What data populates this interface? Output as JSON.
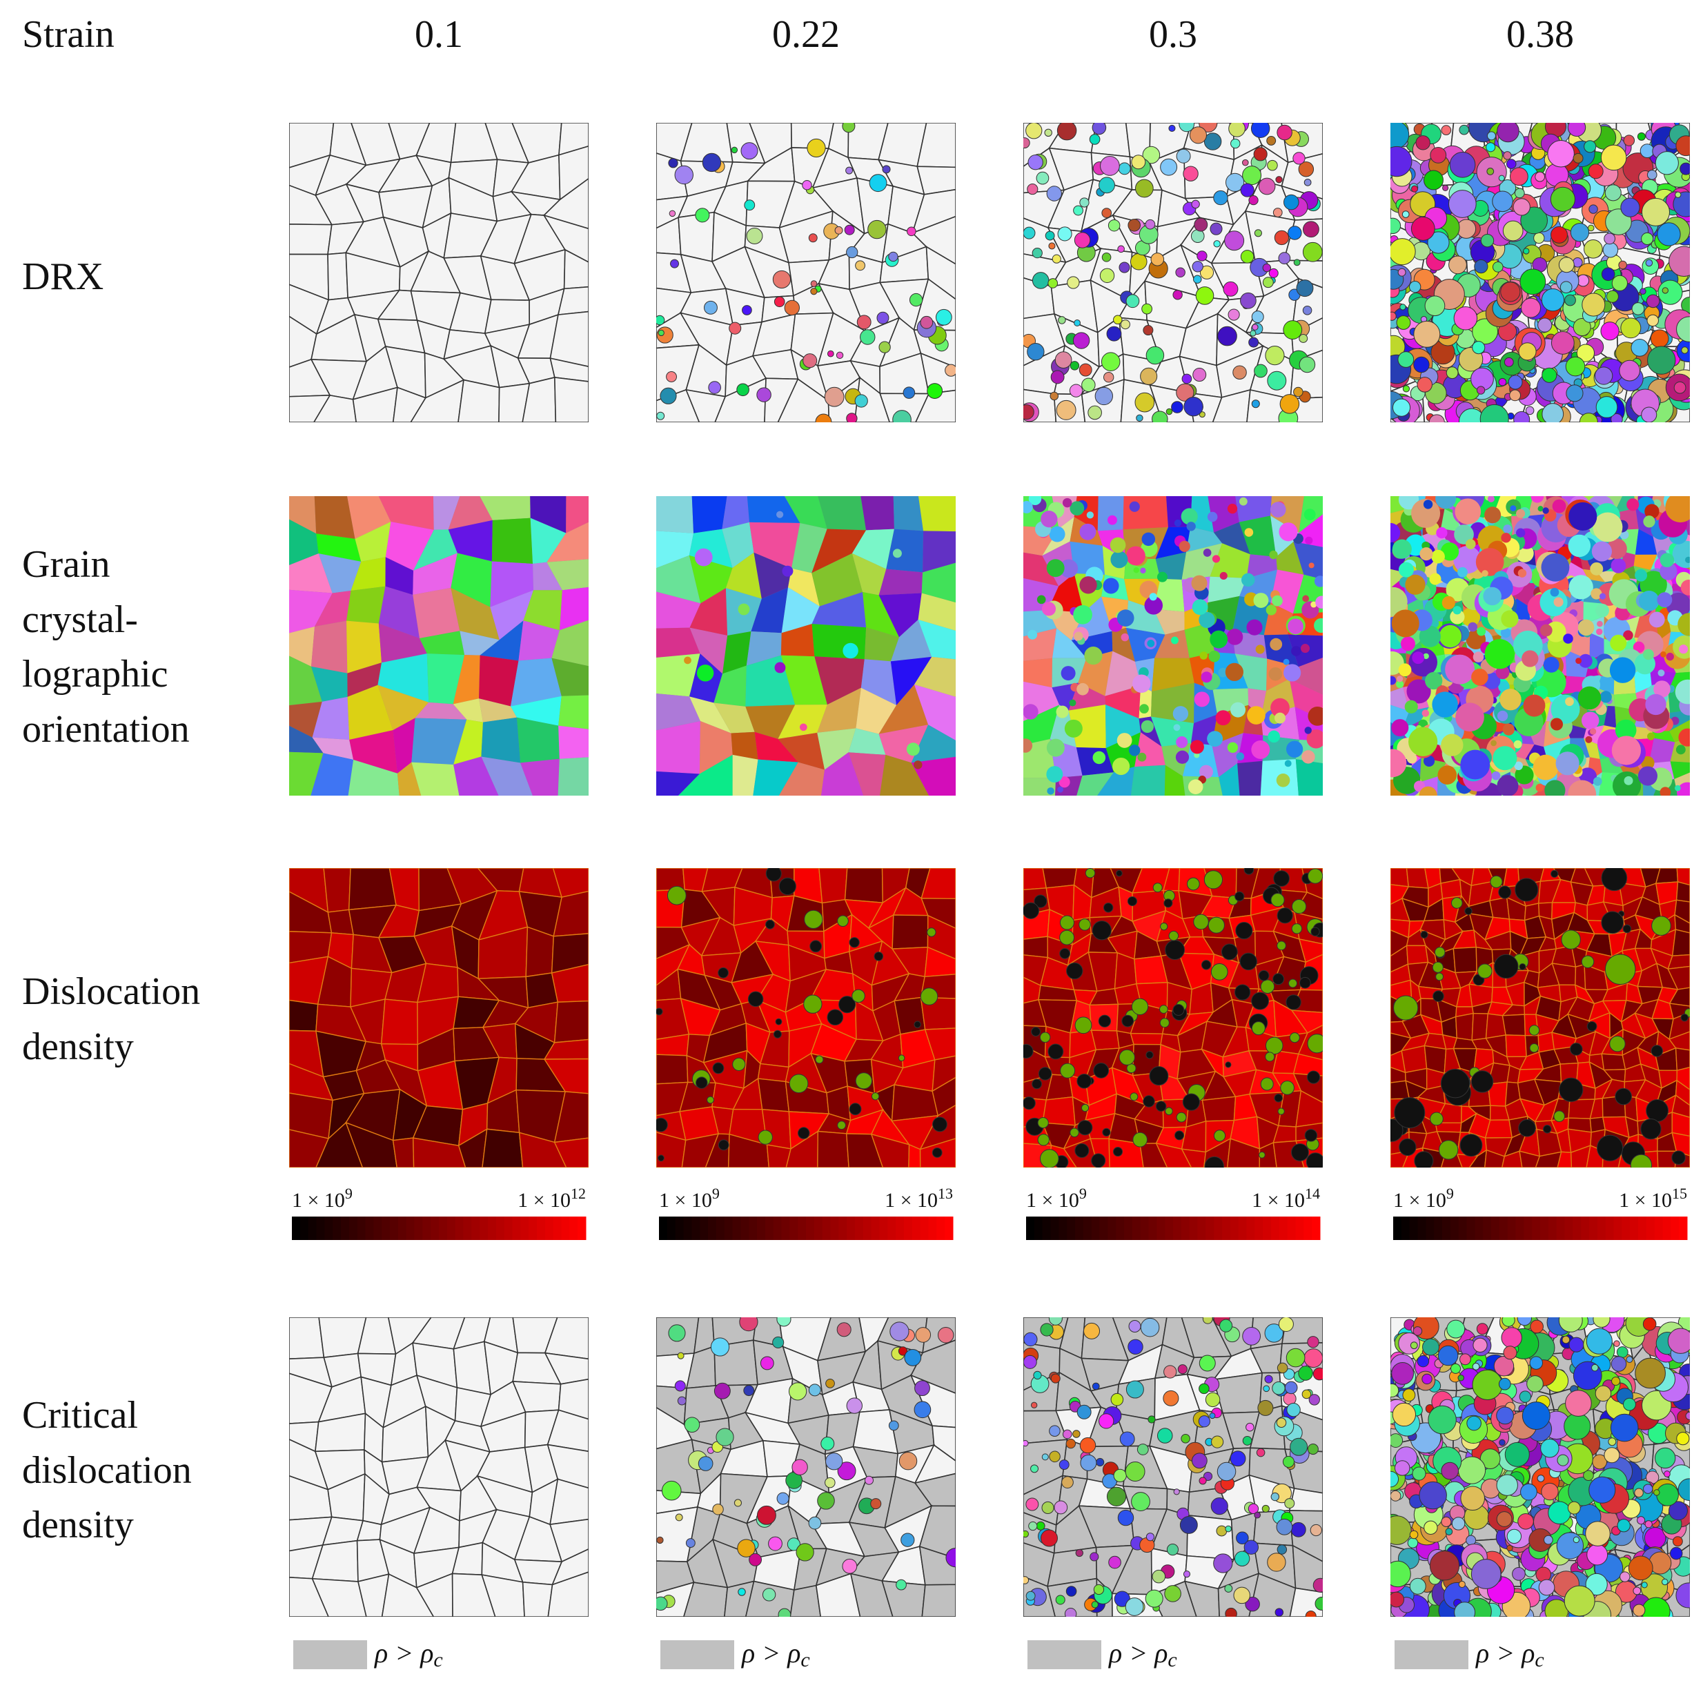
{
  "header": {
    "corner": "Strain",
    "columns": [
      "0.1",
      "0.22",
      "0.3",
      "0.38"
    ]
  },
  "rows": [
    {
      "label": [
        "DRX"
      ]
    },
    {
      "label": [
        "Grain",
        "crystal-",
        "lographic",
        "orientation"
      ]
    },
    {
      "label": [
        "Dislocation",
        "density"
      ]
    },
    {
      "label": [
        "Critical",
        "dislocation",
        "density"
      ]
    }
  ],
  "colorbars": [
    {
      "min": {
        "coefficient": "1 × 10",
        "exponent": "9"
      },
      "max": {
        "coefficient": "1 × 10",
        "exponent": "12"
      }
    },
    {
      "min": {
        "coefficient": "1 × 10",
        "exponent": "9"
      },
      "max": {
        "coefficient": "1 × 10",
        "exponent": "13"
      }
    },
    {
      "min": {
        "coefficient": "1 × 10",
        "exponent": "9"
      },
      "max": {
        "coefficient": "1 × 10",
        "exponent": "14"
      }
    },
    {
      "min": {
        "coefficient": "1 × 10",
        "exponent": "9"
      },
      "max": {
        "coefficient": "1 × 10",
        "exponent": "15"
      }
    }
  ],
  "legend": {
    "symbol": "ρ > ρ",
    "subscript": "c"
  }
}
